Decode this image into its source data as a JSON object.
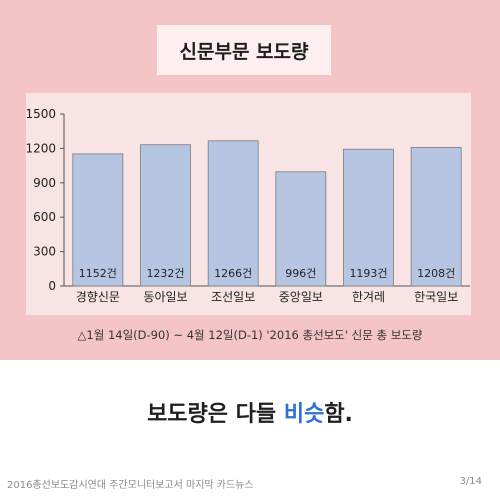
{
  "title": "신문부문 보도량",
  "chart_data": {
    "type": "bar",
    "categories": [
      "경향신문",
      "동아일보",
      "조선일보",
      "중앙일보",
      "한겨레",
      "한국일보"
    ],
    "values": [
      1152,
      1232,
      1266,
      996,
      1193,
      1208
    ],
    "data_labels": [
      "1152건",
      "1232건",
      "1266건",
      "996건",
      "1193건",
      "1208건"
    ],
    "yticks": [
      "0",
      "300",
      "600",
      "900",
      "1200",
      "1500"
    ],
    "ylim": [
      0,
      1500
    ],
    "grid": false,
    "bar_color": "#b6c6e2",
    "caption": "△1월 14일(D-90) ~ 4월 12일(D-1) '2016 총선보도' 신문 총 보도량"
  },
  "headline": {
    "prefix": "보도량은 다들 ",
    "highlight": "비슷",
    "suffix": "함."
  },
  "footer": {
    "left": "2016총선보도감시연대 주간모니터보고서 마지막 카드뉴스",
    "right": "3/14"
  },
  "colors": {
    "background_top": "#f4c4c7",
    "highlight": "#2c6fd6"
  }
}
